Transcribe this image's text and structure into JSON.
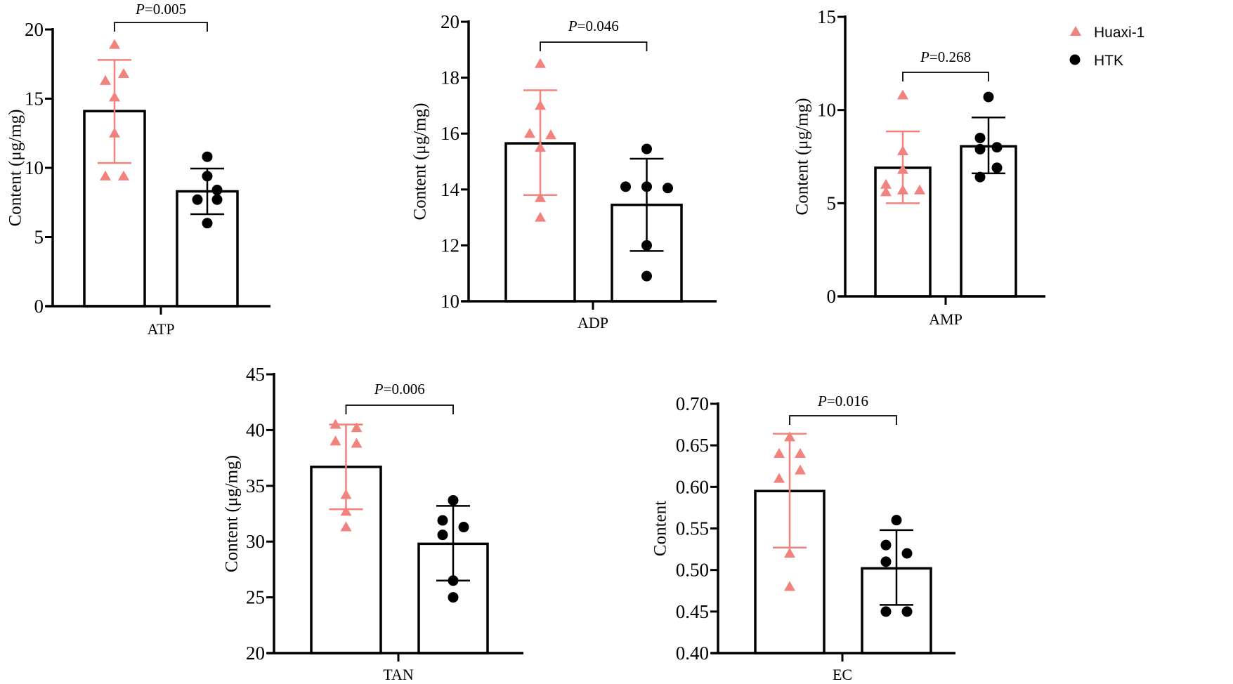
{
  "colors": {
    "huaxi": "#F2827E",
    "htk": "#000000",
    "axis": "#000000"
  },
  "legend": {
    "placement": "top-right",
    "items": [
      {
        "label": "Huaxi-1",
        "marker": "triangle",
        "color": "#F2827E"
      },
      {
        "label": "HTK",
        "marker": "circle",
        "color": "#000000"
      }
    ]
  },
  "chart_data": [
    {
      "type": "bar",
      "category": "ATP",
      "ylabel": "Content (μg/mg)",
      "ylim": [
        0,
        20
      ],
      "yticks": [
        0,
        5,
        10,
        15,
        20
      ],
      "ytick_labels": [
        "0",
        "5",
        "10",
        "15",
        "20"
      ],
      "p_prefix": "P",
      "p_value": "=0.005",
      "series": [
        {
          "name": "Huaxi-1",
          "mean": 14.1,
          "sd_upper": 17.8,
          "sd_lower": 10.35,
          "points": [
            18.9,
            16.8,
            16.3,
            15.1,
            12.5,
            9.4,
            9.4
          ]
        },
        {
          "name": "HTK",
          "mean": 8.3,
          "sd_upper": 9.95,
          "sd_lower": 6.65,
          "points": [
            10.8,
            9.4,
            8.4,
            7.7,
            7.7,
            6.0
          ]
        }
      ]
    },
    {
      "type": "bar",
      "category": "ADP",
      "ylabel": "Content (μg/mg)",
      "ylim": [
        10,
        20
      ],
      "yticks": [
        10,
        12,
        14,
        16,
        18,
        20
      ],
      "ytick_labels": [
        "10",
        "12",
        "14",
        "16",
        "18",
        "20"
      ],
      "p_prefix": "P",
      "p_value": "=0.046",
      "series": [
        {
          "name": "Huaxi-1",
          "mean": 15.65,
          "sd_upper": 17.55,
          "sd_lower": 13.8,
          "points": [
            18.5,
            17.0,
            16.0,
            15.95,
            15.5,
            13.7,
            13.0
          ]
        },
        {
          "name": "HTK",
          "mean": 13.45,
          "sd_upper": 15.1,
          "sd_lower": 11.8,
          "points": [
            15.45,
            14.1,
            14.1,
            14.05,
            12.0,
            10.9
          ]
        }
      ]
    },
    {
      "type": "bar",
      "category": "AMP",
      "ylabel": "Content (μg/mg)",
      "ylim": [
        0,
        15
      ],
      "yticks": [
        0,
        5,
        10,
        15
      ],
      "ytick_labels": [
        "0",
        "5",
        "10",
        "15"
      ],
      "p_prefix": "P",
      "p_value": "=0.268",
      "series": [
        {
          "name": "Huaxi-1",
          "mean": 6.9,
          "sd_upper": 8.85,
          "sd_lower": 5.0,
          "points": [
            10.8,
            7.8,
            6.8,
            6.0,
            5.6,
            5.7,
            5.7
          ]
        },
        {
          "name": "HTK",
          "mean": 8.05,
          "sd_upper": 9.6,
          "sd_lower": 6.6,
          "points": [
            10.7,
            8.5,
            8.0,
            7.9,
            6.9,
            6.4
          ]
        }
      ]
    },
    {
      "type": "bar",
      "category": "TAN",
      "ylabel": "Content (μg/mg)",
      "ylim": [
        20,
        45
      ],
      "yticks": [
        20,
        25,
        30,
        35,
        40,
        45
      ],
      "ytick_labels": [
        "20",
        "25",
        "30",
        "35",
        "40",
        "45"
      ],
      "p_prefix": "P",
      "p_value": "=0.006",
      "series": [
        {
          "name": "Huaxi-1",
          "mean": 36.7,
          "sd_upper": 40.5,
          "sd_lower": 32.9,
          "points": [
            40.5,
            40.2,
            39.0,
            38.8,
            34.2,
            32.7,
            31.3
          ]
        },
        {
          "name": "HTK",
          "mean": 29.8,
          "sd_upper": 33.2,
          "sd_lower": 26.5,
          "points": [
            33.7,
            31.9,
            31.3,
            30.6,
            26.5,
            25.0
          ]
        }
      ]
    },
    {
      "type": "bar",
      "category": "EC",
      "ylabel": "Content",
      "ylim": [
        0.4,
        0.7
      ],
      "yticks": [
        0.4,
        0.45,
        0.5,
        0.55,
        0.6,
        0.65,
        0.7
      ],
      "ytick_labels": [
        "0.40",
        "0.45",
        "0.50",
        "0.55",
        "0.60",
        "0.65",
        "0.70"
      ],
      "p_prefix": "P",
      "p_value": "=0.016",
      "series": [
        {
          "name": "Huaxi-1",
          "mean": 0.595,
          "sd_upper": 0.664,
          "sd_lower": 0.527,
          "points": [
            0.66,
            0.64,
            0.64,
            0.62,
            0.61,
            0.52,
            0.48
          ]
        },
        {
          "name": "HTK",
          "mean": 0.502,
          "sd_upper": 0.548,
          "sd_lower": 0.458,
          "points": [
            0.56,
            0.53,
            0.52,
            0.51,
            0.45,
            0.45
          ]
        }
      ]
    }
  ]
}
